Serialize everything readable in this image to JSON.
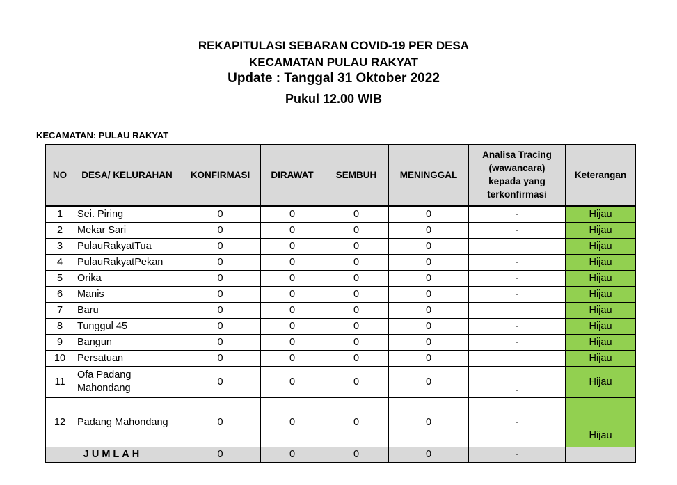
{
  "title": {
    "line1": "REKAPITULASI SEBARAN COVID-19 PER DESA",
    "line2": "KECAMATAN PULAU RAKYAT",
    "line3": "Update : Tanggal 31 Oktober 2022",
    "line4": "Pukul 12.00 WIB"
  },
  "kecamatan_label": "KECAMATAN: PULAU RAKYAT",
  "colors": {
    "hijau": "#92d050",
    "header_bg": "#d9d9d9"
  },
  "table": {
    "headers": [
      "NO",
      "DESA/ KELURAHAN",
      "KONFIRMASI",
      "DIRAWAT",
      "SEMBUH",
      "MENINGGAL",
      "Analisa Tracing (wawancara) kepada yang terkonfirmasi",
      "Keterangan"
    ],
    "rows": [
      {
        "no": "1",
        "desa": "Sei. Piring",
        "konfirmasi": "0",
        "dirawat": "0",
        "sembuh": "0",
        "meninggal": "0",
        "tracing": "-",
        "ket": "Hijau"
      },
      {
        "no": "2",
        "desa": "Mekar Sari",
        "konfirmasi": "0",
        "dirawat": "0",
        "sembuh": "0",
        "meninggal": "0",
        "tracing": "-",
        "ket": "Hijau"
      },
      {
        "no": "3",
        "desa": "PulauRakyatTua",
        "konfirmasi": "0",
        "dirawat": "0",
        "sembuh": "0",
        "meninggal": "0",
        "tracing": "",
        "ket": "Hijau"
      },
      {
        "no": "4",
        "desa": "PulauRakyatPekan",
        "konfirmasi": "0",
        "dirawat": "0",
        "sembuh": "0",
        "meninggal": "0",
        "tracing": "-",
        "ket": "Hijau"
      },
      {
        "no": "5",
        "desa": "Orika",
        "konfirmasi": "0",
        "dirawat": "0",
        "sembuh": "0",
        "meninggal": "0",
        "tracing": "-",
        "ket": "Hijau"
      },
      {
        "no": "6",
        "desa": "Manis",
        "konfirmasi": "0",
        "dirawat": "0",
        "sembuh": "0",
        "meninggal": "0",
        "tracing": "-",
        "ket": "Hijau"
      },
      {
        "no": "7",
        "desa": "Baru",
        "konfirmasi": "0",
        "dirawat": "0",
        "sembuh": "0",
        "meninggal": "0",
        "tracing": "",
        "ket": "Hijau"
      },
      {
        "no": "8",
        "desa": "Tunggul 45",
        "konfirmasi": "0",
        "dirawat": "0",
        "sembuh": "0",
        "meninggal": "0",
        "tracing": "-",
        "ket": "Hijau"
      },
      {
        "no": "9",
        "desa": "Bangun",
        "konfirmasi": "0",
        "dirawat": "0",
        "sembuh": "0",
        "meninggal": "0",
        "tracing": "-",
        "ket": "Hijau"
      },
      {
        "no": "10",
        "desa": "Persatuan",
        "konfirmasi": "0",
        "dirawat": "0",
        "sembuh": "0",
        "meninggal": "0",
        "tracing": "",
        "ket": "Hijau"
      },
      {
        "no": "11",
        "desa": "Ofa Padang Mahondang",
        "konfirmasi": "0",
        "dirawat": "0",
        "sembuh": "0",
        "meninggal": "0",
        "tracing": "-",
        "ket": "Hijau"
      },
      {
        "no": "12",
        "desa": "Padang Mahondang",
        "konfirmasi": "0",
        "dirawat": "0",
        "sembuh": "0",
        "meninggal": "0",
        "tracing": "-",
        "ket": "Hijau"
      }
    ],
    "total": {
      "label": "JUMLAH",
      "konfirmasi": "0",
      "dirawat": "0",
      "sembuh": "0",
      "meninggal": "0",
      "tracing": "-",
      "ket": ""
    }
  }
}
